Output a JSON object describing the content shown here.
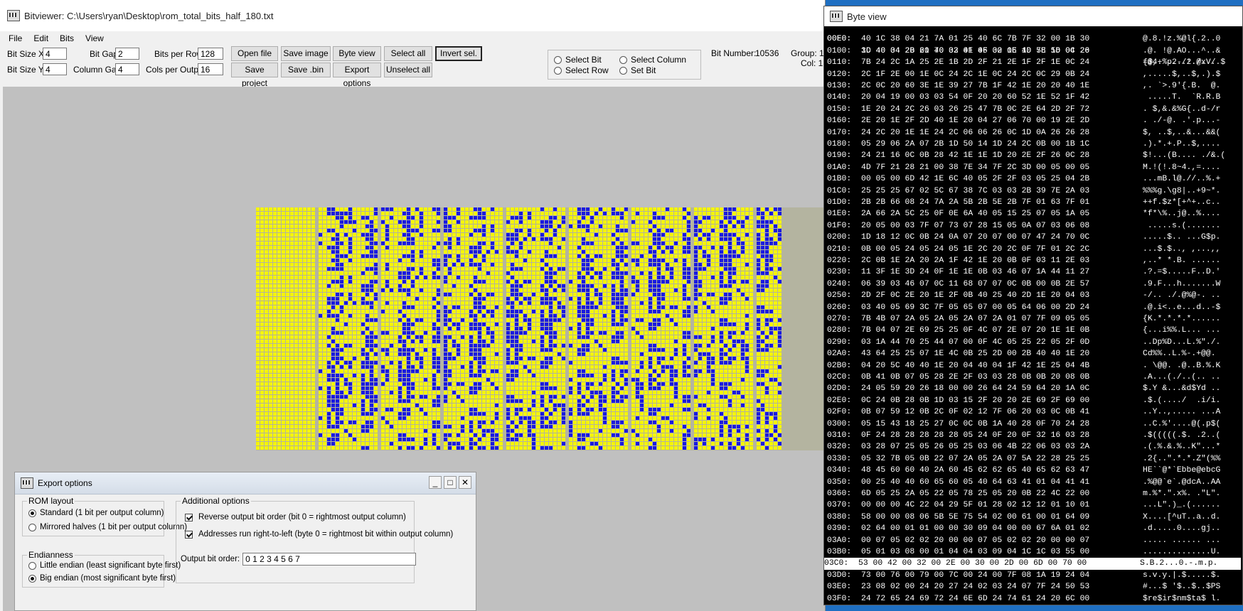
{
  "main": {
    "title": "Bitviewer: C:\\Users\\ryan\\Desktop\\rom_total_bits_half_180.txt",
    "menu": [
      "File",
      "Edit",
      "Bits",
      "View"
    ],
    "fields": {
      "bit_size_x_label": "Bit Size X",
      "bit_size_x": "4",
      "bit_size_y_label": "Bit Size Y",
      "bit_size_y": "4",
      "bit_gap_label": "Bit Gap",
      "bit_gap": "2",
      "column_gap_label": "Column Gap:",
      "column_gap": "4",
      "bits_per_row_label": "Bits per Row:",
      "bits_per_row": "128",
      "cols_per_output_label": "Cols per Output:",
      "cols_per_output": "16"
    },
    "buttons": {
      "open_file": "Open file",
      "save_image": "Save image",
      "byte_view": "Byte view (hex)",
      "select_all": "Select all",
      "invert_sel": "Invert sel.",
      "save_project": "Save project",
      "save_bin": "Save .bin",
      "export_options": "Export options",
      "unselect_all": "Unselect all"
    },
    "select_mode": {
      "select_bit": "Select Bit",
      "select_column": "Select Column",
      "select_row": "Select Row",
      "set_bit": "Set Bit"
    },
    "bit_number_label": "Bit Number:",
    "bit_number": "10536",
    "group_label": "Group: 1",
    "col_label": "Col: 1",
    "colors": {
      "bit_on": "#1a1adf",
      "bit_off": "#f5f500",
      "grid": "#b4b4a0"
    }
  },
  "byte_view": {
    "title": "Byte view",
    "first_row": {
      "addr": "00E0:",
      "hex": "3D 40 34 2B 60 70 32 0F 06 32 06 40 78 56 04 20",
      "ascii": "=@4+`p2..2.@xV. "
    },
    "rows": [
      {
        "addr": "00F0:",
        "hex": "40 1C 38 04 21 7A 01 25 40 6C 7B 7F 32 00 1B 30",
        "ascii": "@.8.!z.%@l{.2..0"
      },
      {
        "addr": "0100:",
        "hex": "1C 40 04 20 21 40 03 41 4F 00 1E 1D 5E 1D 0C 26",
        "ascii": ".@. !@.AO...^..&"
      },
      {
        "addr": "0110:",
        "hex": "7B 24 2C 1A 25 2E 1B 2D 2F 21 2E 1F 2F 1E 0C 24",
        "ascii": "{$,.%..-/!./../.$"
      },
      {
        "addr": "0120:",
        "hex": "2C 1F 2E 00 1E 0C 24 2C 1E 0C 24 2C 0C 29 0B 24",
        "ascii": ",.....$,..$,.).$"
      },
      {
        "addr": "0130:",
        "hex": "2C 0C 20 60 3E 1E 39 27 7B 1F 42 1E 20 20 40 1E",
        "ascii": ",. `>.9'{.B.  @."
      },
      {
        "addr": "0140:",
        "hex": "20 04 19 00 03 03 54 0F 20 20 60 52 1E 52 1F 42",
        "ascii": " .....T.  `R.R.B"
      },
      {
        "addr": "0150:",
        "hex": "1E 20 24 2C 26 03 26 25 47 7B 0C 2E 64 2D 2F 72",
        "ascii": ". $,&.&%G{..d-/r"
      },
      {
        "addr": "0160:",
        "hex": "2E 20 1E 2F 2D 40 1E 20 04 27 06 70 00 19 2E 2D",
        "ascii": ". ./-@. .'.p...-"
      },
      {
        "addr": "0170:",
        "hex": "24 2C 20 1E 1E 24 2C 06 06 26 0C 1D 0A 26 26 28",
        "ascii": "$, ..$,..&...&&("
      },
      {
        "addr": "0180:",
        "hex": "05 29 06 2A 07 2B 1D 50 14 1D 24 2C 0B 00 1B 1C",
        "ascii": ".).*.+.P..$,...."
      },
      {
        "addr": "0190:",
        "hex": "24 21 16 0C 0B 28 42 1E 1E 1D 20 2E 2F 26 0C 28",
        "ascii": "$!...(B.... ./&.("
      },
      {
        "addr": "01A0:",
        "hex": "4D 7F 21 28 21 00 38 7E 34 7F 2C 3D 00 05 00 05",
        "ascii": "M.!(!.8~4.,=...."
      },
      {
        "addr": "01B0:",
        "hex": "00 05 00 6D 42 1E 6C 40 05 2F 2F 03 05 25 04 2B",
        "ascii": "...mB.l@.//..%.+"
      },
      {
        "addr": "01C0:",
        "hex": "25 25 25 67 02 5C 67 38 7C 03 03 2B 39 7E 2A 03",
        "ascii": "%%%g.\\g8|..+9~*."
      },
      {
        "addr": "01D0:",
        "hex": "2B 2B 66 08 24 7A 2A 5B 2B 5E 2B 7F 01 63 7F 01",
        "ascii": "++f.$z*[+^+..c.."
      },
      {
        "addr": "01E0:",
        "hex": "2A 66 2A 5C 25 0F 0E 6A 40 05 15 25 07 05 1A 05",
        "ascii": "*f*\\%..j@..%...."
      },
      {
        "addr": "01F0:",
        "hex": "20 05 00 03 7F 07 73 07 28 15 05 0A 07 03 06 08",
        "ascii": " .....s.(......."
      },
      {
        "addr": "0200:",
        "hex": "1D 18 12 0C 0B 24 0A 07 20 07 00 07 47 24 70 0C",
        "ascii": ".....$.. ...G$p."
      },
      {
        "addr": "0210:",
        "hex": "0B 00 05 24 05 24 05 1E 2C 20 2C 0F 7F 01 2C 2C",
        "ascii": "...$.$.., ,...,,"
      },
      {
        "addr": "0220:",
        "hex": "2C 0B 1E 2A 20 2A 1F 42 1E 20 0B 0F 03 11 2E 03",
        "ascii": ",..* *.B. ......"
      },
      {
        "addr": "0230:",
        "hex": "11 3F 1E 3D 24 0F 1E 1E 0B 03 46 07 1A 44 11 27",
        "ascii": ".?.=$.....F..D.'"
      },
      {
        "addr": "0240:",
        "hex": "06 39 03 46 07 0C 11 68 07 07 0C 0B 00 0B 2E 57",
        "ascii": ".9.F...h.......W"
      },
      {
        "addr": "0250:",
        "hex": "2D 2F 0C 2E 20 1E 2F 0B 40 25 40 2D 1E 20 04 03",
        "ascii": "-/.. ./.@%@-. .."
      },
      {
        "addr": "0260:",
        "hex": "03 40 05 69 3C 7F 05 65 07 00 05 64 06 00 2D 24",
        "ascii": ".@.i<..e...d..-$"
      },
      {
        "addr": "0270:",
        "hex": "7B 4B 07 2A 05 2A 05 2A 07 2A 01 07 7F 09 05 05",
        "ascii": "{K.*.*.*.*......"
      },
      {
        "addr": "0280:",
        "hex": "7B 04 07 2E 69 25 25 0F 4C 07 2E 07 20 1E 1E 0B",
        "ascii": "{...i%%.L... ..."
      },
      {
        "addr": "0290:",
        "hex": "03 1A 44 70 25 44 07 00 0F 4C 05 25 22 05 2F 0D",
        "ascii": "..Dp%D...L.%\"./."
      },
      {
        "addr": "02A0:",
        "hex": "43 64 25 25 07 1E 4C 0B 25 2D 00 2B 40 40 1E 20",
        "ascii": "Cd%%..L.%-.+@@. "
      },
      {
        "addr": "02B0:",
        "hex": "04 20 5C 40 40 1E 20 04 40 04 1F 42 1E 25 04 4B",
        "ascii": ". \\@@. .@..B.%.K"
      },
      {
        "addr": "02C0:",
        "hex": "0B 41 0B 07 05 28 2E 2F 03 03 28 0B 0B 20 08 0B",
        "ascii": ".A...(./..(.. .."
      },
      {
        "addr": "02D0:",
        "hex": "24 05 59 20 26 18 00 00 26 64 24 59 64 20 1A 0C",
        "ascii": "$.Y &...&d$Yd .."
      },
      {
        "addr": "02E0:",
        "hex": "0C 24 0B 28 0B 1D 03 15 2F 20 20 2E 69 2F 69 00",
        "ascii": ".$.(..../  .i/i."
      },
      {
        "addr": "02F0:",
        "hex": "0B 07 59 12 0B 2C 0F 02 12 7F 06 20 03 0C 0B 41",
        "ascii": "..Y..,..... ...A"
      },
      {
        "addr": "0300:",
        "hex": "05 15 43 18 25 27 0C 0C 0B 1A 40 28 0F 70 24 28",
        "ascii": "..C.%'....@(.p$("
      },
      {
        "addr": "0310:",
        "hex": "0F 24 28 28 28 28 28 05 24 0F 20 0F 32 16 03 28",
        "ascii": ".$(((((.$. .2..("
      },
      {
        "addr": "0320:",
        "hex": "03 28 07 25 05 26 05 25 03 06 4B 22 06 03 03 2A",
        "ascii": ".(.%.&.%..K\"...*"
      },
      {
        "addr": "0330:",
        "hex": "05 32 7B 05 0B 22 07 2A 05 2A 07 5A 22 28 25 25",
        "ascii": ".2{..\".*.*.Z\"(%%"
      },
      {
        "addr": "0340:",
        "hex": "48 45 60 60 40 2A 60 45 62 62 65 40 65 62 63 47",
        "ascii": "HE``@*`Ebbe@ebcG"
      },
      {
        "addr": "0350:",
        "hex": "00 25 40 40 60 65 60 05 40 64 63 41 01 04 41 41",
        "ascii": ".%@@`e`.@dcA..AA"
      },
      {
        "addr": "0360:",
        "hex": "6D 05 25 2A 05 22 05 78 25 05 20 0B 22 4C 22 00",
        "ascii": "m.%*.\".x%. .\"L\"."
      },
      {
        "addr": "0370:",
        "hex": "00 00 00 4C 22 04 29 5F 01 28 02 12 12 01 10 01",
        "ascii": "...L\".)_.(......"
      },
      {
        "addr": "0380:",
        "hex": "58 00 00 08 06 5B 5E 75 54 02 00 61 00 01 64 09",
        "ascii": "X....[^uT..a..d."
      },
      {
        "addr": "0390:",
        "hex": "02 64 00 01 01 00 00 30 09 04 00 00 67 6A 01 02",
        "ascii": ".d.....0....gj.."
      },
      {
        "addr": "03A0:",
        "hex": "00 07 05 02 02 20 00 00 07 05 02 02 20 00 00 07",
        "ascii": "..... ...... ..."
      },
      {
        "addr": "03B0:",
        "hex": "05 01 03 08 00 01 04 04 03 09 04 1C 1C 03 55 00",
        "ascii": "..............U."
      },
      {
        "addr": "03C0:",
        "hex": "53 00 42 00 32 00 2E 00 30 00 2D 00 6D 00 70 00",
        "ascii": "S.B.2...0.-.m.p.",
        "selected": true
      },
      {
        "addr": "03D0:",
        "hex": "73 00 76 00 79 00 7C 00 24 00 7F 08 1A 19 24 04",
        "ascii": "s.v.y.|.$.....$."
      },
      {
        "addr": "03E0:",
        "hex": "23 08 02 00 24 20 27 24 02 03 24 07 7F 24 50 53",
        "ascii": "#...$ '$..$..$PS"
      },
      {
        "addr": "03F0:",
        "hex": "24 72 65 24 69 72 24 6E 6D 24 74 61 24 20 6C 00",
        "ascii": "$re$ir$nm$ta$ l."
      }
    ]
  },
  "export": {
    "title": "Export options",
    "rom_layout_title": "ROM layout",
    "standard": "Standard (1 bit per output column)",
    "mirrored": "Mirrored halves (1 bit per output column)",
    "endianness_title": "Endianness",
    "little": "Little endian (least significant byte first)",
    "big": "Big endian (most significant byte first)",
    "additional_title": "Additional options",
    "reverse": "Reverse output bit order (bit 0 = rightmost output column)",
    "addresses": "Addresses run right-to-left (byte 0 = rightmost bit within output column)",
    "output_bit_order_label": "Output bit order:",
    "output_bit_order": "0 1 2 3 4 5 6 7"
  }
}
